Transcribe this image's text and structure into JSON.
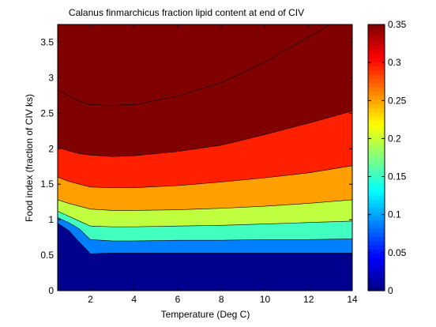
{
  "chart_data": {
    "type": "contourf",
    "title": "Calanus finmarchicus fraction lipid content at end of CIV",
    "xlabel": "Temperature (Deg C)",
    "ylabel": "Food index (fraction of CIV ks)",
    "xlim": [
      0.5,
      14
    ],
    "ylim": [
      0,
      3.75
    ],
    "xticks": [
      "2",
      "4",
      "6",
      "8",
      "10",
      "12",
      "14"
    ],
    "xtick_values": [
      2,
      4,
      6,
      8,
      10,
      12,
      14
    ],
    "yticks": [
      "0",
      "0.5",
      "1",
      "1.5",
      "2",
      "2.5",
      "3",
      "3.5"
    ],
    "ytick_values": [
      0,
      0.5,
      1,
      1.5,
      2,
      2.5,
      3,
      3.5
    ],
    "colorbar": {
      "min": 0,
      "max": 0.35,
      "ticks": [
        "0",
        "0.05",
        "0.1",
        "0.15",
        "0.2",
        "0.25",
        "0.3",
        "0.35"
      ],
      "tick_values": [
        0,
        0.05,
        0.1,
        0.15,
        0.2,
        0.25,
        0.3,
        0.35
      ]
    },
    "levels": [
      0.05,
      0.1,
      0.15,
      0.2,
      0.25,
      0.3
    ],
    "band_colors": [
      "#00008F",
      "#0080FF",
      "#40FFBF",
      "#C0FF40",
      "#FF9F00",
      "#FF2000",
      "#800000"
    ],
    "contours": [
      {
        "level": 0.05,
        "x": [
          0.5,
          1.0,
          1.5,
          2.0,
          3.0,
          4.0,
          6.0,
          8.0,
          10.0,
          12.0,
          14.0
        ],
        "y": [
          0.95,
          0.85,
          0.68,
          0.52,
          0.53,
          0.53,
          0.53,
          0.53,
          0.53,
          0.53,
          0.53
        ]
      },
      {
        "level": 0.1,
        "x": [
          0.5,
          1.0,
          1.5,
          2.0,
          3.0,
          4.0,
          6.0,
          8.0,
          10.0,
          12.0,
          14.0
        ],
        "y": [
          1.03,
          0.96,
          0.87,
          0.72,
          0.7,
          0.7,
          0.71,
          0.71,
          0.72,
          0.72,
          0.73
        ]
      },
      {
        "level": 0.15,
        "x": [
          0.5,
          1.0,
          1.5,
          2.0,
          3.0,
          4.0,
          6.0,
          8.0,
          10.0,
          12.0,
          14.0
        ],
        "y": [
          1.12,
          1.05,
          0.98,
          0.91,
          0.9,
          0.9,
          0.91,
          0.92,
          0.94,
          0.96,
          0.98
        ]
      },
      {
        "level": 0.2,
        "x": [
          0.5,
          1.0,
          1.5,
          2.0,
          3.0,
          4.0,
          6.0,
          8.0,
          10.0,
          12.0,
          14.0
        ],
        "y": [
          1.28,
          1.23,
          1.19,
          1.15,
          1.13,
          1.13,
          1.14,
          1.16,
          1.19,
          1.23,
          1.28
        ]
      },
      {
        "level": 0.25,
        "x": [
          0.5,
          1.0,
          1.5,
          2.0,
          3.0,
          4.0,
          6.0,
          8.0,
          10.0,
          12.0,
          14.0
        ],
        "y": [
          1.6,
          1.54,
          1.5,
          1.46,
          1.45,
          1.45,
          1.48,
          1.53,
          1.59,
          1.66,
          1.76
        ]
      },
      {
        "level": 0.3,
        "x": [
          0.5,
          1.0,
          1.5,
          2.0,
          3.0,
          4.0,
          6.0,
          8.0,
          10.0,
          12.0,
          14.0
        ],
        "y": [
          2.02,
          1.97,
          1.93,
          1.91,
          1.89,
          1.9,
          1.96,
          2.05,
          2.2,
          2.36,
          2.53
        ]
      },
      {
        "level": 0.35,
        "x": [
          0.5,
          1.0,
          1.5,
          2.0,
          3.0,
          4.0,
          6.0,
          8.0,
          10.0,
          11.0,
          12.0,
          13.0
        ],
        "y": [
          2.83,
          2.75,
          2.67,
          2.62,
          2.61,
          2.62,
          2.74,
          2.93,
          3.22,
          3.4,
          3.57,
          3.75
        ]
      }
    ]
  }
}
